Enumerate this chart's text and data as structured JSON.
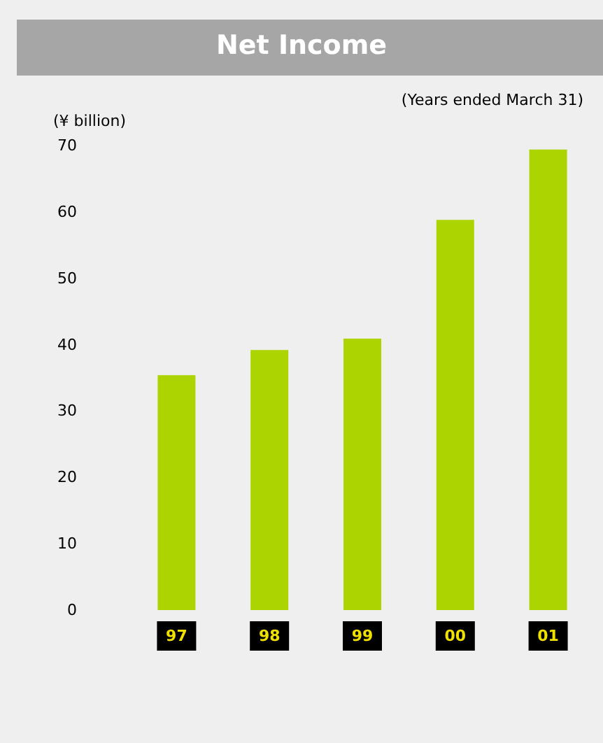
{
  "chart_data": {
    "type": "bar",
    "title": "Net Income",
    "ylabel": "(¥ billion)",
    "annotations": [
      "(Years ended March 31)"
    ],
    "categories": [
      "97",
      "98",
      "99",
      "00",
      "01"
    ],
    "values": [
      35.4,
      39.2,
      40.9,
      58.8,
      69.4
    ],
    "color": "#acd400",
    "ylim": [
      0,
      70
    ],
    "yticks": [
      0,
      10,
      20,
      30,
      40,
      50,
      60,
      70
    ],
    "grid": false
  }
}
